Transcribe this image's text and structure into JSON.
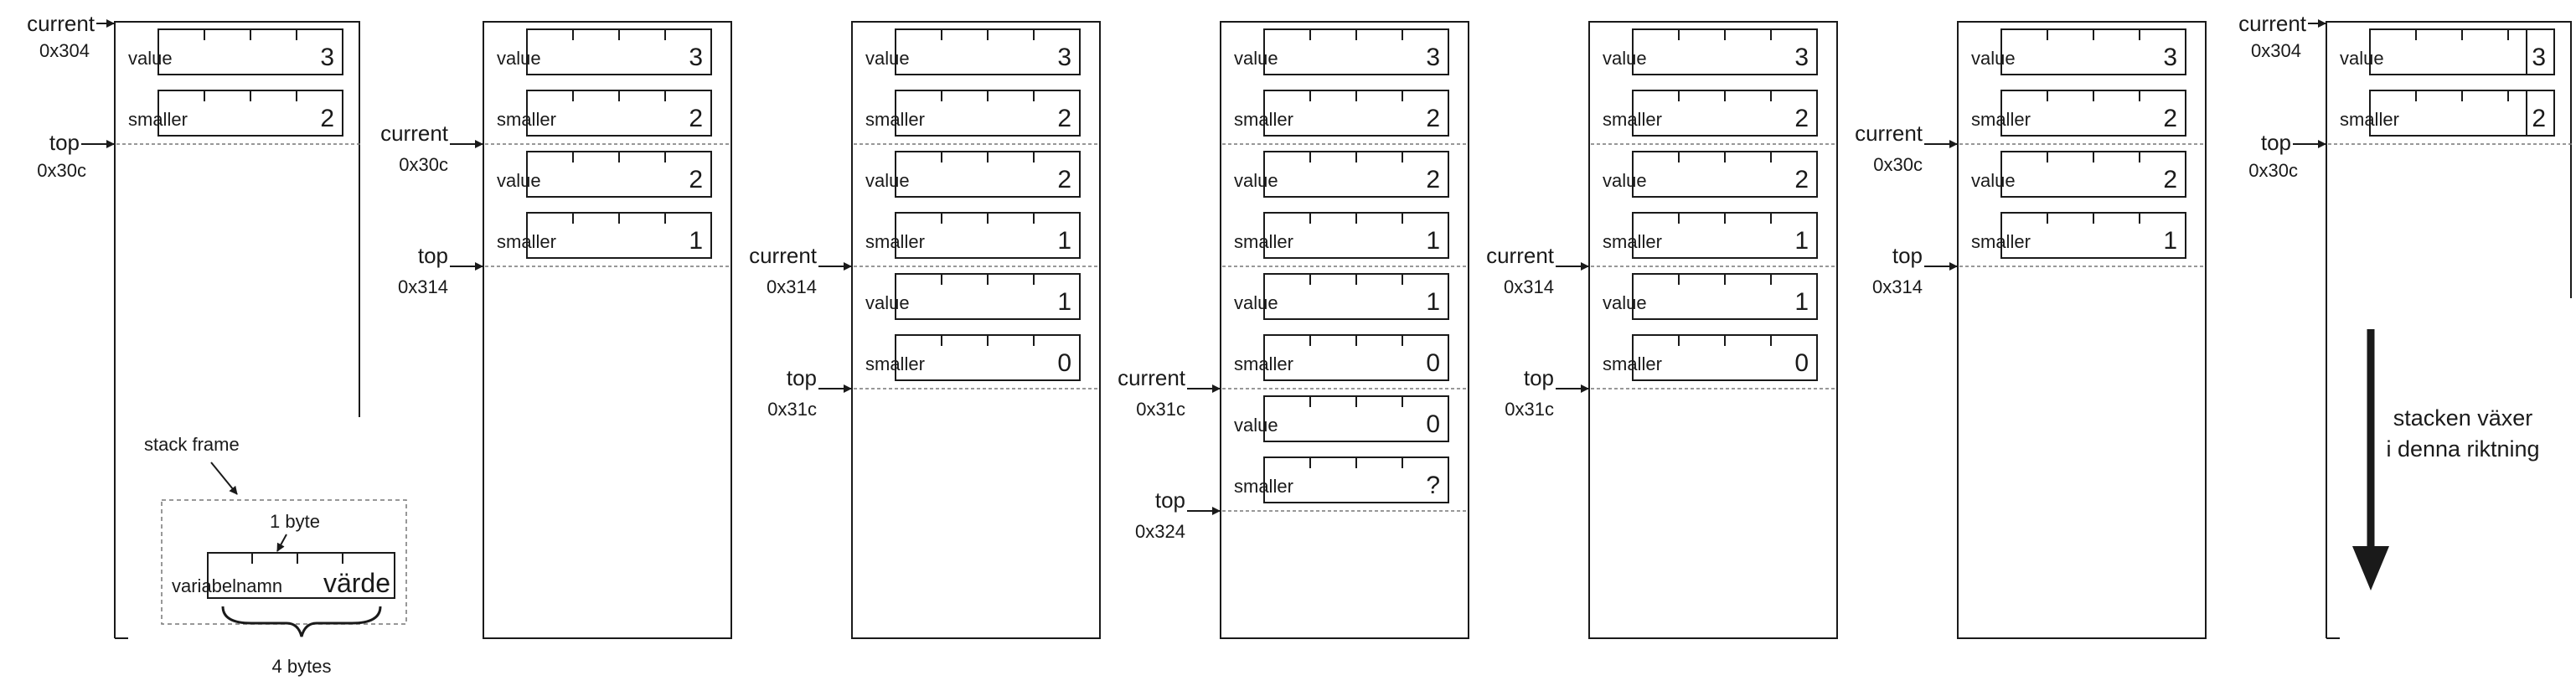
{
  "labels": {
    "current": "current",
    "top": "top",
    "value": "value",
    "smaller": "smaller"
  },
  "stages": [
    {
      "vars": [
        {
          "value": "3",
          "smaller": "2"
        }
      ],
      "current": "0x304",
      "top": "0x30c"
    },
    {
      "vars": [
        {
          "value": "3",
          "smaller": "2"
        },
        {
          "value": "2",
          "smaller": "1"
        }
      ],
      "current": "0x30c",
      "top": "0x314"
    },
    {
      "vars": [
        {
          "value": "3",
          "smaller": "2"
        },
        {
          "value": "2",
          "smaller": "1"
        },
        {
          "value": "1",
          "smaller": "0"
        }
      ],
      "current": "0x314",
      "top": "0x31c"
    },
    {
      "vars": [
        {
          "value": "3",
          "smaller": "2"
        },
        {
          "value": "2",
          "smaller": "1"
        },
        {
          "value": "1",
          "smaller": "0"
        },
        {
          "value": "0",
          "smaller": "?"
        }
      ],
      "current": "0x31c",
      "top": "0x324"
    },
    {
      "vars": [
        {
          "value": "3",
          "smaller": "2"
        },
        {
          "value": "2",
          "smaller": "1"
        },
        {
          "value": "1",
          "smaller": "0"
        }
      ],
      "current": "0x314",
      "top": "0x31c"
    },
    {
      "vars": [
        {
          "value": "3",
          "smaller": "2"
        },
        {
          "value": "2",
          "smaller": "1"
        }
      ],
      "current": "0x30c",
      "top": "0x314"
    },
    {
      "vars": [
        {
          "value": "3",
          "smaller": "2"
        }
      ],
      "current": "0x304",
      "top": "0x30c"
    }
  ],
  "legend": {
    "stack_frame": "stack frame",
    "one_byte": "1 byte",
    "variable_name": "variabelnamn",
    "value_word": "värde",
    "four_bytes": "4 bytes"
  },
  "direction": {
    "line1": "stacken växer",
    "line2": "i denna riktning"
  }
}
